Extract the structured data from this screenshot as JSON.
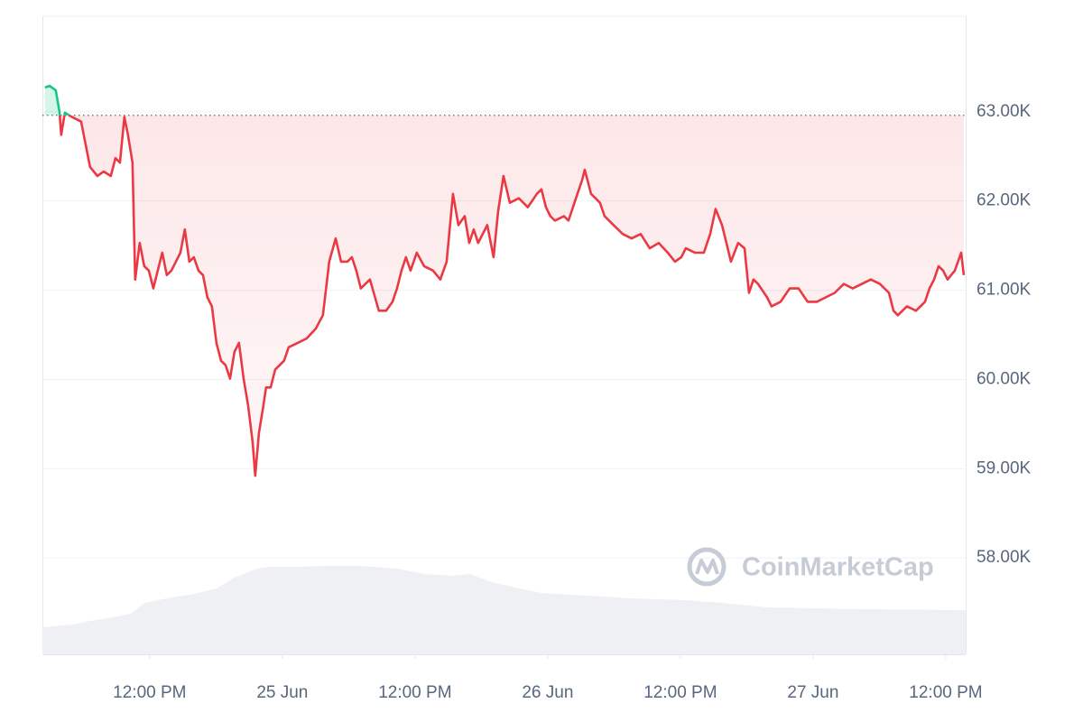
{
  "chart_data": {
    "type": "line",
    "watermark": "CoinMarketCap",
    "color": "#ea3943",
    "above_color": "#16c784",
    "baseline": 62960,
    "grid": true,
    "xlim": [
      2.3,
      85.8
    ],
    "xticks": [
      {
        "value": 12,
        "label": "12:00 PM"
      },
      {
        "value": 24,
        "label": "25 Jun"
      },
      {
        "value": 36,
        "label": "12:00 PM"
      },
      {
        "value": 48,
        "label": "26 Jun"
      },
      {
        "value": 60,
        "label": "12:00 PM"
      },
      {
        "value": 72,
        "label": "27 Jun"
      },
      {
        "value": 84,
        "label": "12:00 PM"
      }
    ],
    "ylim": [
      56920,
      64070
    ],
    "yticks": [
      {
        "value": 58000,
        "label": "58.00K"
      },
      {
        "value": 59000,
        "label": "59.00K"
      },
      {
        "value": 60000,
        "label": "60.00K"
      },
      {
        "value": 61000,
        "label": "61.00K"
      },
      {
        "value": 62000,
        "label": "62.00K"
      },
      {
        "value": 63000,
        "label": "63.00K"
      }
    ],
    "x": [
      2.53,
      2.94,
      3.51,
      3.84,
      4.0,
      4.33,
      4.98,
      5.8,
      6.61,
      7.27,
      7.84,
      8.49,
      8.9,
      9.31,
      9.71,
      10.04,
      10.45,
      10.69,
      11.1,
      11.51,
      11.92,
      12.33,
      12.73,
      13.14,
      13.55,
      13.96,
      14.37,
      14.78,
      15.18,
      15.59,
      16.0,
      16.41,
      16.82,
      17.22,
      17.63,
      18.04,
      18.45,
      18.86,
      19.27,
      19.67,
      20.08,
      20.49,
      20.9,
      21.31,
      21.55,
      21.88,
      22.29,
      22.53,
      22.94,
      23.35,
      23.76,
      24.16,
      24.57,
      25.39,
      26.2,
      27.02,
      27.67,
      28.24,
      28.82,
      29.31,
      29.88,
      30.29,
      30.69,
      31.1,
      31.92,
      32.73,
      33.39,
      33.96,
      34.37,
      34.78,
      35.18,
      35.59,
      36.16,
      36.82,
      37.63,
      38.29,
      38.86,
      39.43,
      39.92,
      40.49,
      40.9,
      41.31,
      41.71,
      42.53,
      43.1,
      43.51,
      44.0,
      44.57,
      45.39,
      46.2,
      47.02,
      47.43,
      47.84,
      48.24,
      48.65,
      49.47,
      49.88,
      50.69,
      51.1,
      51.35,
      51.92,
      52.33,
      52.73,
      53.14,
      53.96,
      54.78,
      55.59,
      56.41,
      57.22,
      58.04,
      58.86,
      59.51,
      60.08,
      60.49,
      61.31,
      62.12,
      62.69,
      63.18,
      63.76,
      64.16,
      64.57,
      65.22,
      65.8,
      66.2,
      66.61,
      67.02,
      67.84,
      68.24,
      69.06,
      69.88,
      70.69,
      71.51,
      72.33,
      73.14,
      73.96,
      74.78,
      75.59,
      76.41,
      77.22,
      78.04,
      78.86,
      79.27,
      79.67,
      80.49,
      81.31,
      82.12,
      82.53,
      82.94,
      83.35,
      83.76,
      84.16,
      84.82,
      85.39,
      85.63
    ],
    "values": [
      63270,
      63290,
      63240,
      63000,
      62740,
      62990,
      62940,
      62890,
      62380,
      62280,
      62330,
      62280,
      62480,
      62430,
      62940,
      62740,
      62430,
      61120,
      61530,
      61270,
      61220,
      61020,
      61220,
      61420,
      61170,
      61220,
      61320,
      61420,
      61680,
      61320,
      61370,
      61220,
      61170,
      60920,
      60820,
      60410,
      60210,
      60160,
      60010,
      60310,
      60410,
      60010,
      59710,
      59300,
      58920,
      59400,
      59710,
      59910,
      59910,
      60110,
      60160,
      60210,
      60360,
      60410,
      60460,
      60570,
      60720,
      61320,
      61580,
      61320,
      61320,
      61370,
      61220,
      61020,
      61120,
      60770,
      60770,
      60870,
      61020,
      61220,
      61370,
      61220,
      61420,
      61270,
      61220,
      61120,
      61320,
      62080,
      61730,
      61830,
      61530,
      61680,
      61530,
      61730,
      61370,
      61880,
      62280,
      61980,
      62030,
      61930,
      62080,
      62130,
      61930,
      61830,
      61780,
      61830,
      61780,
      62080,
      62230,
      62350,
      62080,
      62030,
      61980,
      61830,
      61730,
      61630,
      61580,
      61630,
      61470,
      61530,
      61420,
      61320,
      61370,
      61470,
      61420,
      61420,
      61630,
      61910,
      61730,
      61530,
      61320,
      61530,
      61470,
      60970,
      61120,
      61070,
      60920,
      60820,
      60870,
      61020,
      61020,
      60870,
      60870,
      60920,
      60970,
      61070,
      61020,
      61070,
      61120,
      61070,
      60970,
      60770,
      60720,
      60820,
      60770,
      60870,
      61020,
      61120,
      61270,
      61220,
      61120,
      61220,
      61420,
      61170
    ]
  }
}
